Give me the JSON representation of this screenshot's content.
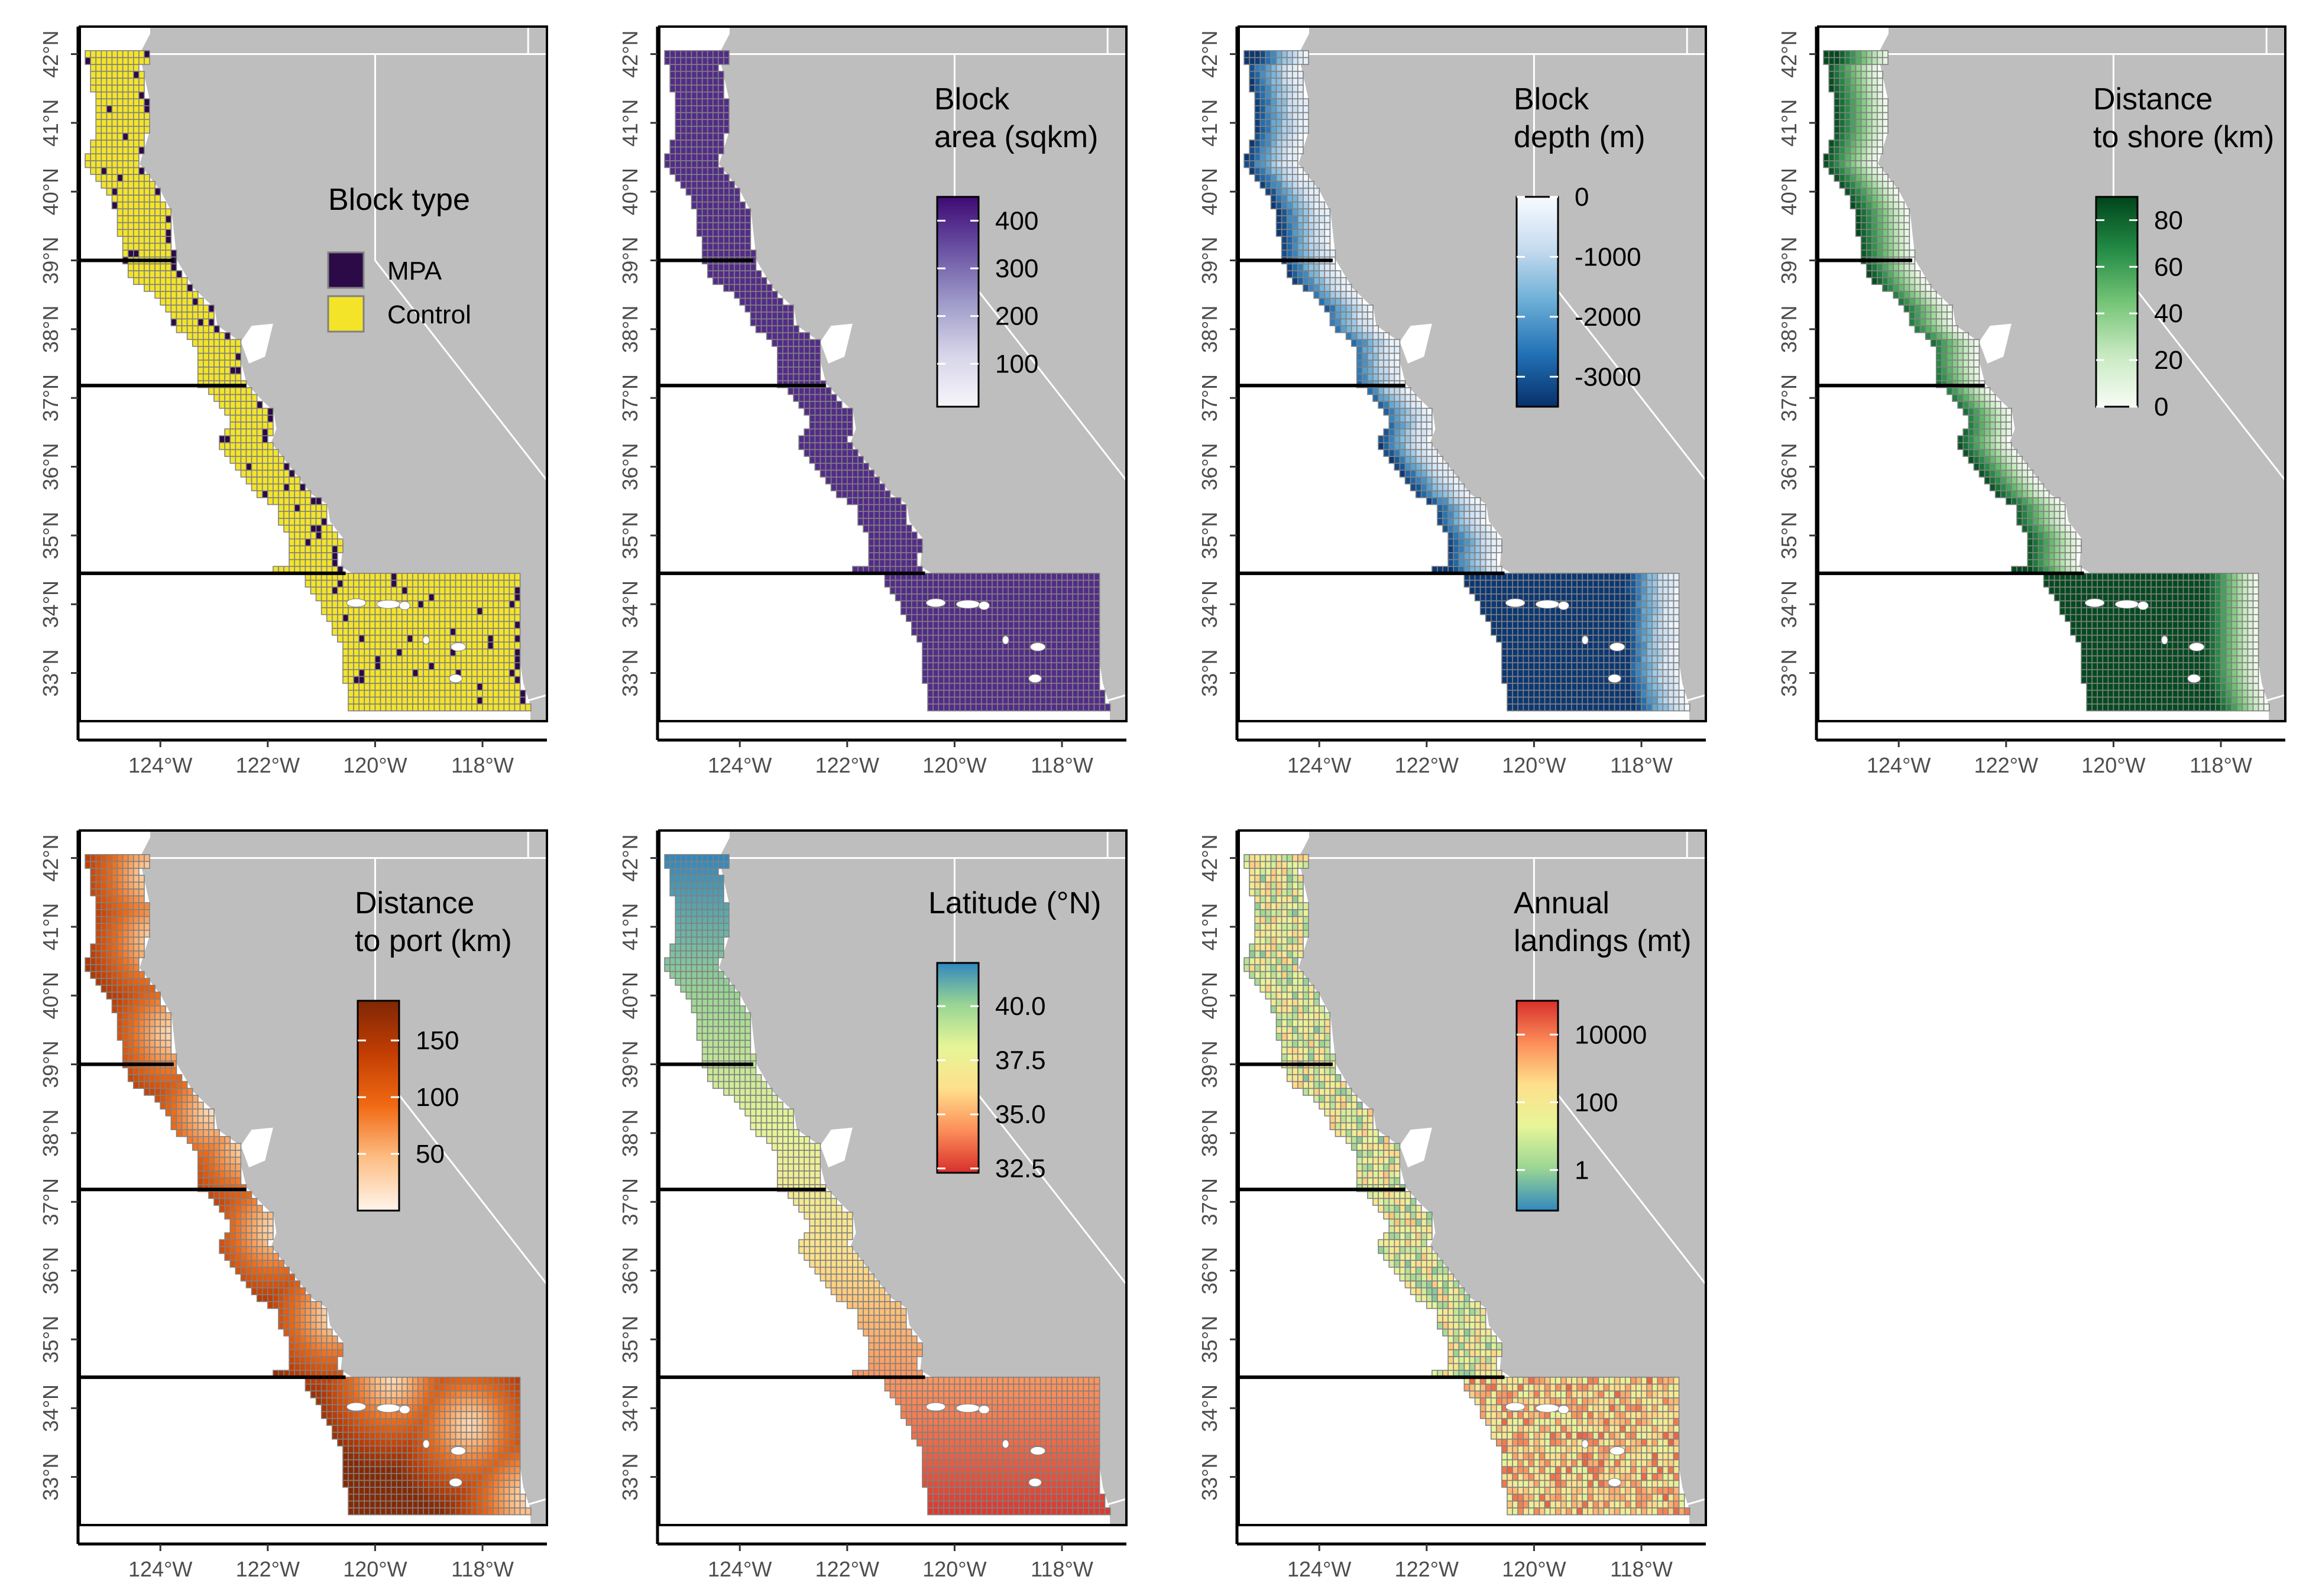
{
  "figure": {
    "x_tick_labels": [
      "124°W",
      "122°W",
      "120°W",
      "118°W"
    ],
    "x_ticks_lon": [
      -124,
      -122,
      -120,
      -118
    ],
    "y_tick_labels": [
      "33°N",
      "34°N",
      "35°N",
      "36°N",
      "37°N",
      "38°N",
      "39°N",
      "40°N",
      "41°N",
      "42°N"
    ],
    "y_ticks_lat": [
      33,
      34,
      35,
      36,
      37,
      38,
      39,
      40,
      41,
      42
    ],
    "lon_range": [
      -125.5,
      -116.8
    ],
    "lat_range": [
      32.3,
      42.4
    ],
    "region_boundary_lats": [
      39.0,
      37.18,
      34.45
    ],
    "colors": {
      "land": "#bebebe",
      "ocean": "#ffffff",
      "grid_line": "#808080",
      "boundary_line": "#000000",
      "state_line": "#ffffff"
    }
  },
  "panels": [
    {
      "id": "block-type",
      "legend_title_lines": [
        "Block type"
      ],
      "legend_type": "categorical",
      "categories": [
        {
          "label": "MPA",
          "color": "#2b0a47"
        },
        {
          "label": "Control",
          "color": "#f3e42a"
        }
      ]
    },
    {
      "id": "block-area",
      "legend_title_lines": [
        "Block",
        "area (sqkm)"
      ],
      "legend_type": "continuous",
      "tick_labels": [
        "400",
        "300",
        "200",
        "100"
      ],
      "tick_values": [
        400,
        300,
        200,
        100
      ],
      "domain": [
        10,
        450
      ],
      "colors": [
        "#f7f5fa",
        "#d6d4e8",
        "#9e9ac9",
        "#6a52a3",
        "#3f0a74"
      ],
      "uniform_value": 400
    },
    {
      "id": "block-depth",
      "legend_title_lines": [
        "Block",
        "depth (m)"
      ],
      "legend_type": "continuous",
      "tick_labels": [
        "0",
        "-1000",
        "-2000",
        "-3000"
      ],
      "tick_values": [
        0,
        -1000,
        -2000,
        -3000
      ],
      "domain": [
        -3500,
        0
      ],
      "colors": [
        "#08306b",
        "#2171b5",
        "#6baed6",
        "#c6dbef",
        "#f7fbff"
      ]
    },
    {
      "id": "distance-shore",
      "legend_title_lines": [
        "Distance",
        "to shore (km)"
      ],
      "legend_type": "continuous",
      "tick_labels": [
        "80",
        "60",
        "40",
        "20",
        "0"
      ],
      "tick_values": [
        80,
        60,
        40,
        20,
        0
      ],
      "domain": [
        0,
        90
      ],
      "colors": [
        "#f7fcf5",
        "#c7e9c0",
        "#74c476",
        "#238b45",
        "#00441b"
      ]
    },
    {
      "id": "distance-port",
      "legend_title_lines": [
        "Distance",
        "to port (km)"
      ],
      "legend_type": "continuous",
      "tick_labels": [
        "150",
        "100",
        "50"
      ],
      "tick_values": [
        150,
        100,
        50
      ],
      "domain": [
        0,
        185
      ],
      "colors": [
        "#fff5eb",
        "#fdbe85",
        "#f16913",
        "#c23e03",
        "#7f2704"
      ]
    },
    {
      "id": "latitude",
      "legend_title_lines": [
        "Latitude (°N)"
      ],
      "legend_type": "continuous",
      "tick_labels": [
        "40.0",
        "37.5",
        "35.0",
        "32.5"
      ],
      "tick_values": [
        40.0,
        37.5,
        35.0,
        32.5
      ],
      "domain": [
        32.3,
        42.0
      ],
      "colors": [
        "#d7302b",
        "#fc8d59",
        "#fee08b",
        "#e6f598",
        "#99d594",
        "#3288bd"
      ]
    },
    {
      "id": "annual-landings",
      "legend_title_lines": [
        "Annual",
        "landings (mt)"
      ],
      "legend_type": "continuous",
      "log_scale": true,
      "tick_labels": [
        "10000",
        "100",
        "1"
      ],
      "tick_values": [
        4,
        2,
        0
      ],
      "domain": [
        -1.2,
        5.0
      ],
      "colors": [
        "#3288bd",
        "#99d594",
        "#e6f598",
        "#fee08b",
        "#fc8d59",
        "#d7302b"
      ]
    }
  ]
}
